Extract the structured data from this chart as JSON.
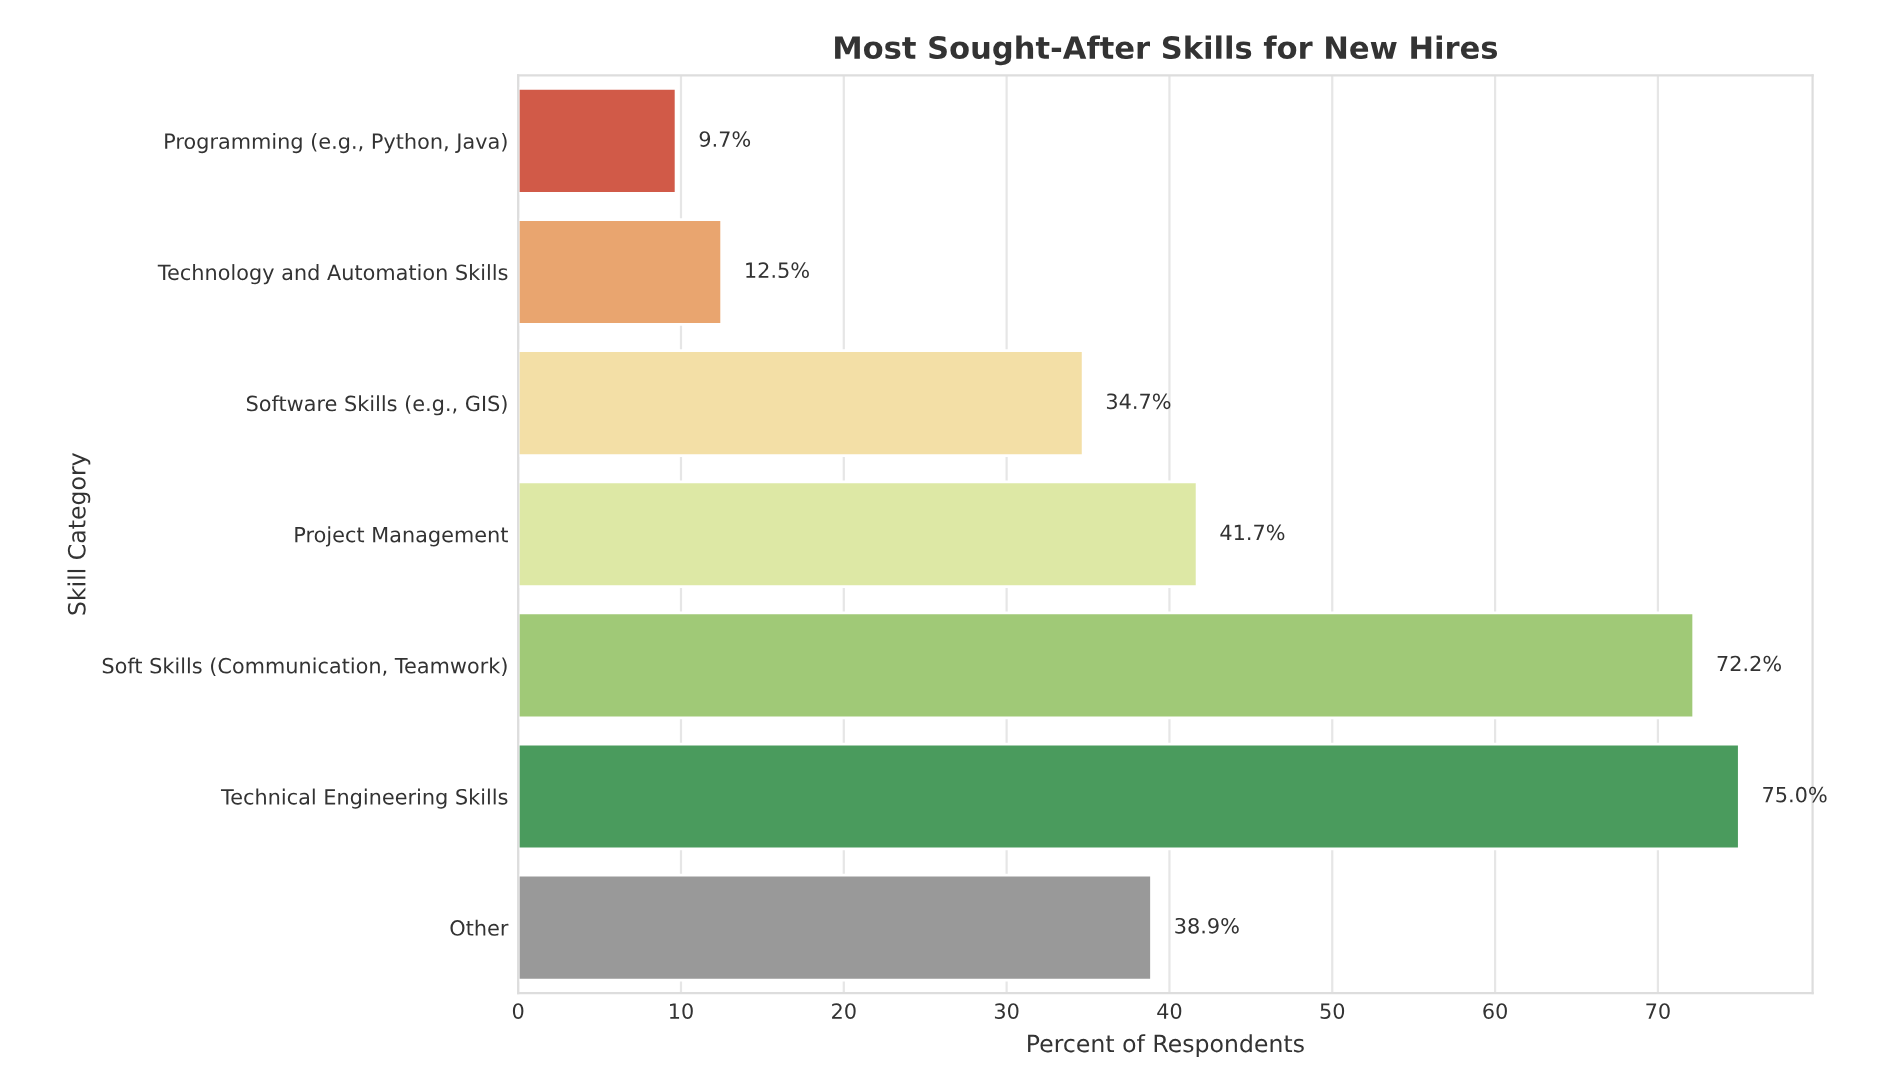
{
  "chart_data": {
    "type": "bar",
    "orientation": "horizontal",
    "title": "Most Sought-After Skills for New Hires",
    "xlabel": "Percent of Respondents",
    "ylabel": "Skill Category",
    "categories": [
      "Programming (e.g., Python, Java)",
      "Technology and Automation Skills",
      "Software Skills (e.g., GIS)",
      "Project Management",
      "Soft Skills (Communication, Teamwork)",
      "Technical Engineering Skills",
      "Other"
    ],
    "values": [
      9.7,
      12.5,
      34.7,
      41.7,
      72.2,
      75.0,
      38.9
    ],
    "value_labels": [
      "9.7%",
      "12.5%",
      "34.7%",
      "41.7%",
      "72.2%",
      "75.0%",
      "38.9%"
    ],
    "colors": [
      "#d15a48",
      "#e9a56f",
      "#f3dfa6",
      "#dde8a5",
      "#a0c977",
      "#4a9b5d",
      "#999999"
    ],
    "xlim": [
      0,
      79.5
    ],
    "xticks": [
      0,
      10,
      20,
      30,
      40,
      50,
      60,
      70
    ],
    "grid": "x"
  }
}
